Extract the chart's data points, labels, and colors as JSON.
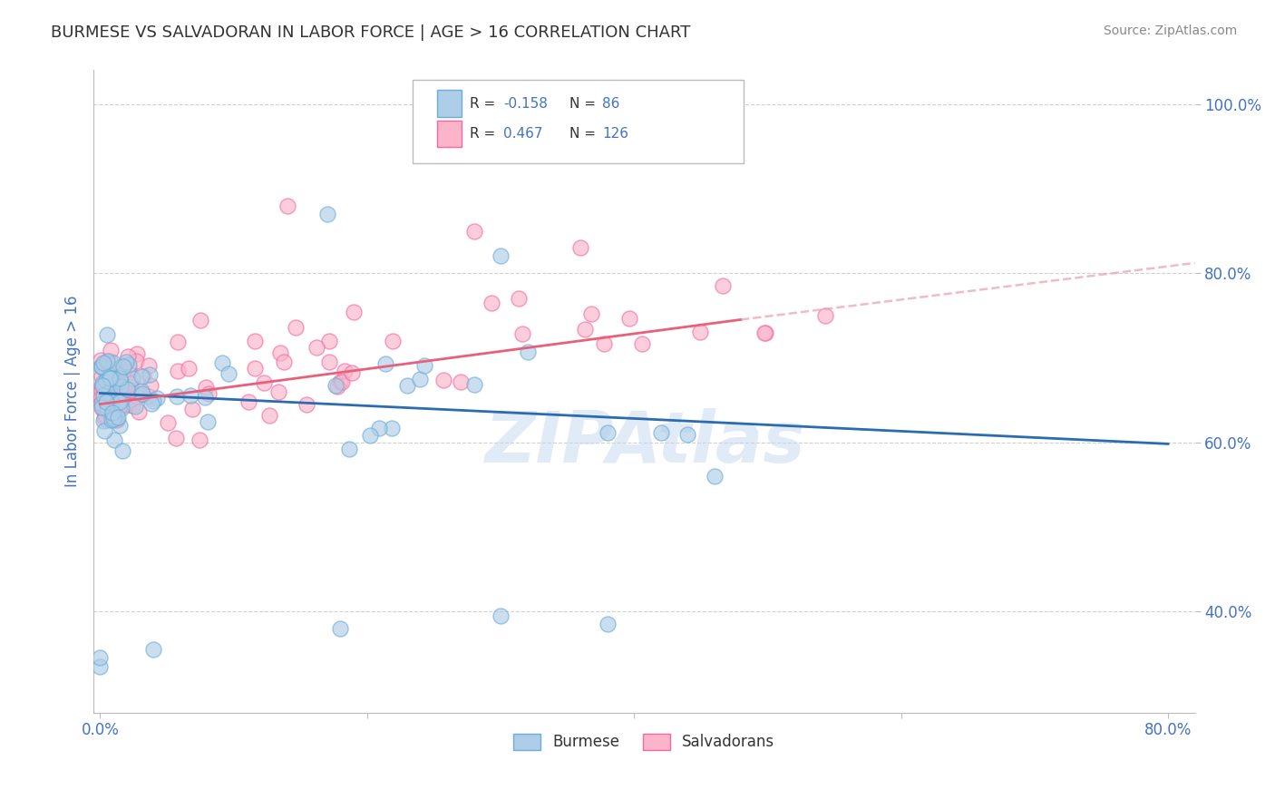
{
  "title": "BURMESE VS SALVADORAN IN LABOR FORCE | AGE > 16 CORRELATION CHART",
  "source": "Source: ZipAtlas.com",
  "xlabel_burmese": "Burmese",
  "xlabel_salvadoran": "Salvadorans",
  "ylabel": "In Labor Force | Age > 16",
  "watermark": "ZIPAtlas",
  "xlim": [
    -0.005,
    0.82
  ],
  "ylim": [
    0.28,
    1.04
  ],
  "x_ticks": [
    0.0,
    0.2,
    0.4,
    0.6,
    0.8
  ],
  "x_tick_labels": [
    "0.0%",
    "",
    "",
    "",
    "80.0%"
  ],
  "y_ticks": [
    0.4,
    0.6,
    0.8,
    1.0
  ],
  "y_tick_labels": [
    "40.0%",
    "60.0%",
    "80.0%",
    "100.0%"
  ],
  "burmese_color": "#6baed6",
  "burmese_color_fill": "#aecde8",
  "salvadoran_color": "#f768a1",
  "salvadoran_color_fill": "#fbb4c9",
  "R_burmese": -0.158,
  "N_burmese": 86,
  "R_salvadoran": 0.467,
  "N_salvadoran": 126,
  "trend_blue_x0": 0.0,
  "trend_blue_y0": 0.658,
  "trend_blue_x1": 0.8,
  "trend_blue_y1": 0.598,
  "trend_pink_solid_x0": 0.0,
  "trend_pink_solid_y0": 0.645,
  "trend_pink_solid_x1": 0.48,
  "trend_pink_solid_y1": 0.745,
  "trend_pink_dash_x0": 0.48,
  "trend_pink_dash_y0": 0.745,
  "trend_pink_dash_x1": 0.82,
  "trend_pink_dash_y1": 0.812,
  "background_color": "#ffffff",
  "grid_color": "#d0d0d0",
  "title_color": "#333333",
  "axis_label_color": "#4472c4",
  "tick_color": "#4472c4"
}
